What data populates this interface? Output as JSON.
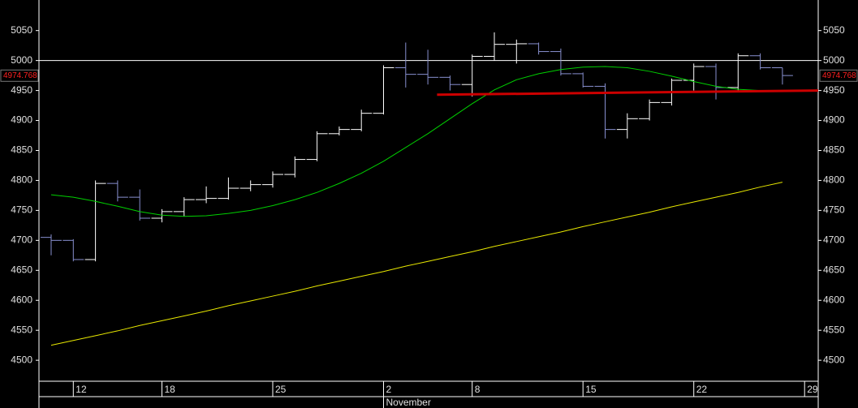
{
  "chart_data": {
    "type": "ohlc",
    "categories": [
      null,
      "12",
      null,
      null,
      null,
      "18",
      null,
      null,
      null,
      null,
      "25",
      null,
      null,
      null,
      null,
      "2",
      null,
      null,
      null,
      "8",
      null,
      null,
      null,
      null,
      "15",
      null,
      null,
      null,
      null,
      "22",
      null,
      null,
      null,
      null,
      "29"
    ],
    "months": [
      {
        "name": "November",
        "start": 15
      }
    ],
    "open": [
      4705,
      4700,
      4668,
      4795,
      4772,
      4737,
      4748,
      4768,
      4770,
      4787,
      4793,
      4810,
      4835,
      4878,
      4885,
      4912,
      4988,
      4977,
      4972,
      4960,
      5007,
      5027,
      5028,
      5015,
      4978,
      4957,
      4885,
      4903,
      4930,
      4967,
      4990,
      4955,
      5008,
      4988,
      null
    ],
    "high": [
      4710,
      4702,
      4800,
      4800,
      4785,
      4752,
      4772,
      4790,
      4805,
      4800,
      4815,
      4840,
      4882,
      4890,
      4918,
      4992,
      5030,
      5018,
      4975,
      5010,
      5047,
      5035,
      5030,
      5020,
      4980,
      4962,
      4912,
      4935,
      4970,
      4995,
      4995,
      5012,
      5012,
      4988,
      null
    ],
    "low": [
      4675,
      4665,
      4665,
      4765,
      4733,
      4730,
      4740,
      4762,
      4768,
      4782,
      4788,
      4805,
      4832,
      4875,
      4882,
      4910,
      4955,
      4960,
      4950,
      4940,
      5000,
      4995,
      5010,
      4975,
      4955,
      4870,
      4870,
      4900,
      4925,
      4950,
      4935,
      4948,
      4985,
      4960,
      null
    ],
    "close": [
      4700,
      4668,
      4795,
      4772,
      4737,
      4748,
      4768,
      4770,
      4787,
      4793,
      4810,
      4835,
      4878,
      4885,
      4912,
      4988,
      4977,
      4972,
      4960,
      5007,
      5027,
      5028,
      5015,
      4978,
      4957,
      4885,
      4903,
      4930,
      4967,
      4990,
      4955,
      5008,
      4988,
      4975,
      null
    ],
    "up_color": "#ffffff",
    "down_color": "#8890d0",
    "series": [
      {
        "color": "#00d000",
        "values": [
          4776,
          4772,
          4765,
          4757,
          4748,
          4742,
          4740,
          4741,
          4745,
          4750,
          4758,
          4768,
          4780,
          4795,
          4812,
          4832,
          4855,
          4878,
          4903,
          4928,
          4951,
          4968,
          4978,
          4985,
          4989,
          4990,
          4988,
          4982,
          4974,
          4965,
          4957,
          4952,
          4950,
          4950,
          null
        ]
      },
      {
        "color": "#e8e800",
        "values": [
          4525,
          4533,
          4541,
          4549,
          4558,
          4566,
          4574,
          4582,
          4591,
          4599,
          4607,
          4615,
          4624,
          4632,
          4640,
          4648,
          4657,
          4665,
          4673,
          4681,
          4690,
          4698,
          4706,
          4714,
          4723,
          4731,
          4739,
          4747,
          4756,
          4764,
          4772,
          4780,
          4789,
          4797,
          null
        ]
      }
    ],
    "hline": {
      "value": 5000,
      "color": "#ffffff"
    },
    "trendline": {
      "start": 18,
      "values": [
        4943,
        4950
      ],
      "color": "#cc0000"
    },
    "last_price": {
      "value": 4974.768,
      "color": "#ff2020"
    },
    "ylim": [
      4465,
      5101
    ],
    "yticks": [
      4500,
      4550,
      4600,
      4650,
      4700,
      4750,
      4800,
      4850,
      4900,
      4950,
      5000,
      5050
    ]
  }
}
